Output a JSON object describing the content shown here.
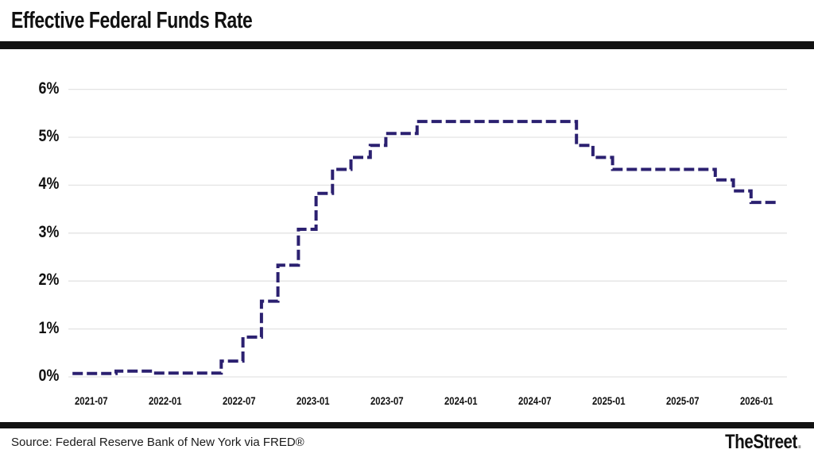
{
  "header": {
    "title": "Effective Federal Funds Rate"
  },
  "footer": {
    "source": "Source: Federal Reserve Bank of New York via FRED®",
    "brand": "TheStreet",
    "brand_dot": "."
  },
  "chart_data": {
    "type": "line",
    "subtype": "step-after dashed line",
    "title": "Effective Federal Funds Rate",
    "xlabel": "",
    "ylabel": "",
    "grid": "horizontal gridlines only, light gray",
    "legend_position": "none",
    "line_color": "#2b2070",
    "grid_color": "#e3e3e3",
    "y_ticks": [
      "0%",
      "1%",
      "2%",
      "3%",
      "4%",
      "5%",
      "6%"
    ],
    "ylim": [
      0,
      6.3
    ],
    "x_ticks": [
      "2021-07",
      "2022-01",
      "2022-07",
      "2023-01",
      "2023-07",
      "2024-01",
      "2024-07",
      "2025-01",
      "2025-07",
      "2026-01"
    ],
    "series": [
      {
        "name": "Effective Federal Funds Rate (%)",
        "step_points": [
          [
            "2021-05-15",
            0.07
          ],
          [
            "2021-09-01",
            0.12
          ],
          [
            "2021-12-01",
            0.08
          ],
          [
            "2022-05-17",
            0.33
          ],
          [
            "2022-07-10",
            0.83
          ],
          [
            "2022-08-25",
            1.58
          ],
          [
            "2022-10-05",
            2.33
          ],
          [
            "2022-11-25",
            3.08
          ],
          [
            "2023-01-08",
            3.83
          ],
          [
            "2023-02-18",
            4.33
          ],
          [
            "2023-04-03",
            4.58
          ],
          [
            "2023-05-20",
            4.83
          ],
          [
            "2023-06-28",
            5.08
          ],
          [
            "2023-09-14",
            5.33
          ],
          [
            "2024-10-12",
            4.83
          ],
          [
            "2024-11-22",
            4.58
          ],
          [
            "2025-01-10",
            4.33
          ],
          [
            "2025-09-20",
            4.11
          ],
          [
            "2025-11-04",
            3.88
          ],
          [
            "2025-12-17",
            3.64
          ],
          [
            "2026-02-25",
            3.64
          ]
        ]
      }
    ]
  }
}
